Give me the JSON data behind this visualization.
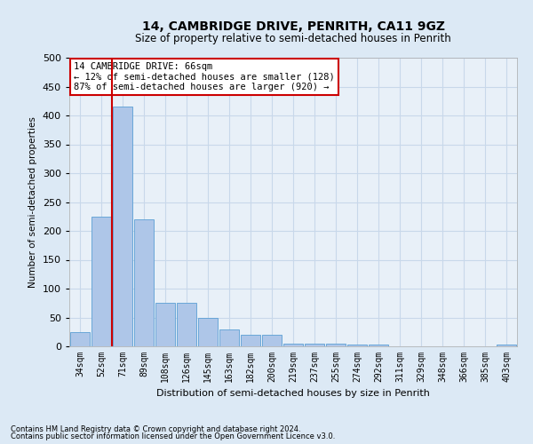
{
  "title1": "14, CAMBRIDGE DRIVE, PENRITH, CA11 9GZ",
  "title2": "Size of property relative to semi-detached houses in Penrith",
  "xlabel": "Distribution of semi-detached houses by size in Penrith",
  "ylabel": "Number of semi-detached properties",
  "footnote1": "Contains HM Land Registry data © Crown copyright and database right 2024.",
  "footnote2": "Contains public sector information licensed under the Open Government Licence v3.0.",
  "bar_labels": [
    "34sqm",
    "52sqm",
    "71sqm",
    "89sqm",
    "108sqm",
    "126sqm",
    "145sqm",
    "163sqm",
    "182sqm",
    "200sqm",
    "219sqm",
    "237sqm",
    "255sqm",
    "274sqm",
    "292sqm",
    "311sqm",
    "329sqm",
    "348sqm",
    "366sqm",
    "385sqm",
    "403sqm"
  ],
  "bar_values": [
    25,
    225,
    415,
    220,
    75,
    75,
    50,
    30,
    20,
    20,
    5,
    5,
    5,
    3,
    3,
    0,
    0,
    0,
    0,
    0,
    3
  ],
  "bar_color": "#aec6e8",
  "bar_edge_color": "#5a9fd4",
  "annotation_label": "14 CAMBRIDGE DRIVE: 66sqm",
  "annotation_smaller": "← 12% of semi-detached houses are smaller (128)",
  "annotation_larger": "87% of semi-detached houses are larger (920) →",
  "ylim": [
    0,
    500
  ],
  "yticks": [
    0,
    50,
    100,
    150,
    200,
    250,
    300,
    350,
    400,
    450,
    500
  ],
  "grid_color": "#c8d8ea",
  "background_color": "#dce9f5",
  "plot_bg_color": "#e8f0f8",
  "red_line_color": "#cc0000",
  "annotation_box_color": "#ffffff",
  "annotation_box_edge": "#cc0000",
  "title1_fontsize": 10,
  "title2_fontsize": 8.5
}
